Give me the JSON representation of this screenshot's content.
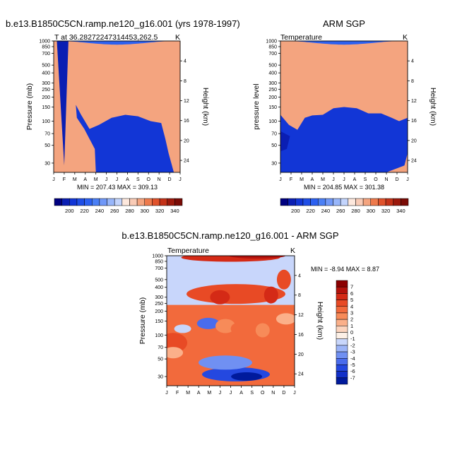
{
  "months": [
    "J",
    "F",
    "M",
    "A",
    "M",
    "J",
    "J",
    "A",
    "S",
    "O",
    "N",
    "D",
    "J"
  ],
  "pressure_ticks": [
    "30",
    "50",
    "70",
    "100",
    "150",
    "200",
    "250",
    "300",
    "400",
    "500",
    "700",
    "850",
    "1000"
  ],
  "height_ticks": [
    "4",
    "8",
    "12",
    "16",
    "20",
    "24"
  ],
  "chart_data": [
    {
      "type": "heatmap",
      "title": "b.e13.B1850C5CN.ramp.ne120_g16.001 (yrs 1978-1997)",
      "subtitle_left": "T at 36.28272247314453,262.5",
      "subtitle_right": "K",
      "xlabel": "",
      "ylabel": "Pressure (mb)",
      "ylabel_right": "Height (km)",
      "stats": "MIN = 207.43 MAX = 309.13",
      "zlim": [
        207.43,
        309.13
      ],
      "colorbar_labels": [
        "200",
        "220",
        "240",
        "260",
        "280",
        "300",
        "320",
        "340"
      ],
      "colorbar_levels": [
        190,
        200,
        210,
        220,
        230,
        240,
        250,
        260,
        270,
        280,
        290,
        300,
        310,
        320,
        330,
        340,
        350
      ],
      "colorbar_colors": [
        "#000080",
        "#0a1eb3",
        "#1236d6",
        "#1f4ee6",
        "#2c60f0",
        "#4a7ff5",
        "#7098f8",
        "#98b6fa",
        "#c3d4fc",
        "#fde8dd",
        "#f9cbb6",
        "#f4a47f",
        "#ee7a4c",
        "#e0522b",
        "#c43218",
        "#9c190c",
        "#7a0b05"
      ]
    },
    {
      "type": "heatmap",
      "title": "ARM SGP",
      "subtitle_left": "Temperature",
      "subtitle_right": "K",
      "ylabel": "pressure level",
      "ylabel_right": "Height (km)",
      "stats": "MIN = 204.85 MAX = 301.38",
      "zlim": [
        204.85,
        301.38
      ],
      "colorbar_labels": [
        "200",
        "220",
        "240",
        "260",
        "280",
        "300",
        "320",
        "340"
      ]
    },
    {
      "type": "heatmap",
      "title": "b.e13.B1850C5CN.ramp.ne120_g16.001 - ARM SGP",
      "subtitle_left": "Temperature",
      "subtitle_right": "K",
      "ylabel": "Pressure (mb)",
      "ylabel_right": "Height (km)",
      "stats": "MIN =  -8.94 MAX =   8.87",
      "zlim": [
        -8.94,
        8.87
      ],
      "colorbar_labels": [
        "7",
        "6",
        "5",
        "4",
        "3",
        "2",
        "1",
        "0",
        "-1",
        "-2",
        "-3",
        "-4",
        "-5",
        "-6",
        "-7"
      ],
      "colorbar_colors": [
        "#8b0000",
        "#b3120c",
        "#d42a16",
        "#e84a25",
        "#f26a3c",
        "#f78b59",
        "#fbb08a",
        "#fcd4be",
        "#fdf0e6",
        "#c8d6fb",
        "#9cb4f7",
        "#7090f2",
        "#4a6cec",
        "#2448e0",
        "#1230c8",
        "#001a9c"
      ]
    }
  ]
}
